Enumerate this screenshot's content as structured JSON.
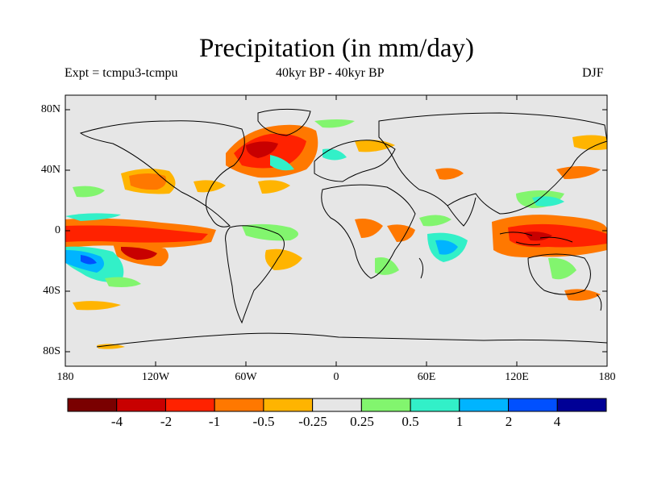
{
  "title": "Precipitation (in mm/day)",
  "subtitle_left": "Expt = tcmpu3-tcmpu",
  "subtitle_center": "40kyr BP - 40kyr BP",
  "subtitle_right": "DJF",
  "lat_ticks": [
    "80N",
    "40N",
    "0",
    "40S",
    "80S"
  ],
  "lon_ticks": [
    "180",
    "120W",
    "60W",
    "0",
    "60E",
    "120E",
    "180"
  ],
  "colorbar": {
    "colors": [
      "#7a0000",
      "#c80000",
      "#ff2200",
      "#ff7800",
      "#ffb400",
      "#e6e6e6",
      "#82f56e",
      "#32f0c8",
      "#00b4ff",
      "#0050ff",
      "#000096"
    ],
    "labels": [
      "-4",
      "-2",
      "-1",
      "-0.5",
      "-0.25",
      "0.25",
      "0.5",
      "1",
      "2",
      "4"
    ]
  },
  "map_background": "#e6e6e6"
}
